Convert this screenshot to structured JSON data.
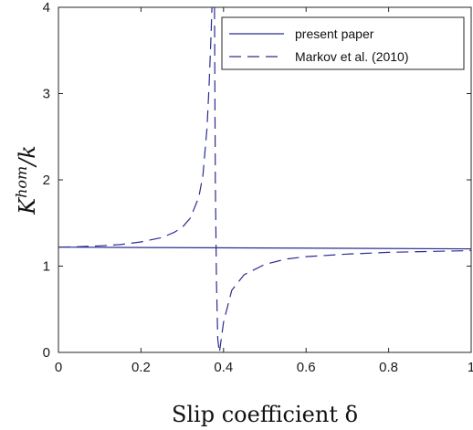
{
  "chart_data": {
    "type": "line",
    "title": "",
    "xlabel": "Slip coefficient δ",
    "ylabel_base": "K",
    "ylabel_sup": "hom",
    "ylabel_rest": "/k",
    "xlim": [
      0,
      1
    ],
    "ylim": [
      0,
      4
    ],
    "xticks": [
      0,
      0.2,
      0.4,
      0.6,
      0.8,
      1
    ],
    "xtick_labels": [
      "0",
      "0.2",
      "0.4",
      "0.6",
      "0.8",
      "1"
    ],
    "yticks": [
      0,
      1,
      2,
      3,
      4
    ],
    "ytick_labels": [
      "0",
      "1",
      "2",
      "3",
      "4"
    ],
    "grid": false,
    "legend_position": "top-right",
    "line_color": "#2b2d8f",
    "series": [
      {
        "name": "present paper",
        "style": "solid",
        "x": [
          0,
          1
        ],
        "y": [
          1.22,
          1.2
        ]
      },
      {
        "name": "Markov et al. (2010)",
        "style": "dashed",
        "segments": [
          {
            "x": [
              0,
              0.05,
              0.1,
              0.15,
              0.2,
              0.25,
              0.28,
              0.3,
              0.32,
              0.34,
              0.35,
              0.36,
              0.365,
              0.37,
              0.372
            ],
            "y": [
              1.22,
              1.225,
              1.235,
              1.25,
              1.28,
              1.33,
              1.39,
              1.45,
              1.56,
              1.8,
              2.05,
              2.6,
              3.1,
              3.7,
              4.0
            ]
          },
          {
            "x": [
              0.378,
              0.38,
              0.383,
              0.386,
              0.39,
              0.4,
              0.42,
              0.45,
              0.5,
              0.55,
              0.6,
              0.7,
              0.8,
              0.9,
              1.0
            ],
            "y": [
              4.0,
              2.0,
              0.8,
              0.15,
              0.0,
              0.35,
              0.72,
              0.9,
              1.02,
              1.08,
              1.11,
              1.14,
              1.16,
              1.17,
              1.18
            ]
          }
        ]
      }
    ]
  }
}
